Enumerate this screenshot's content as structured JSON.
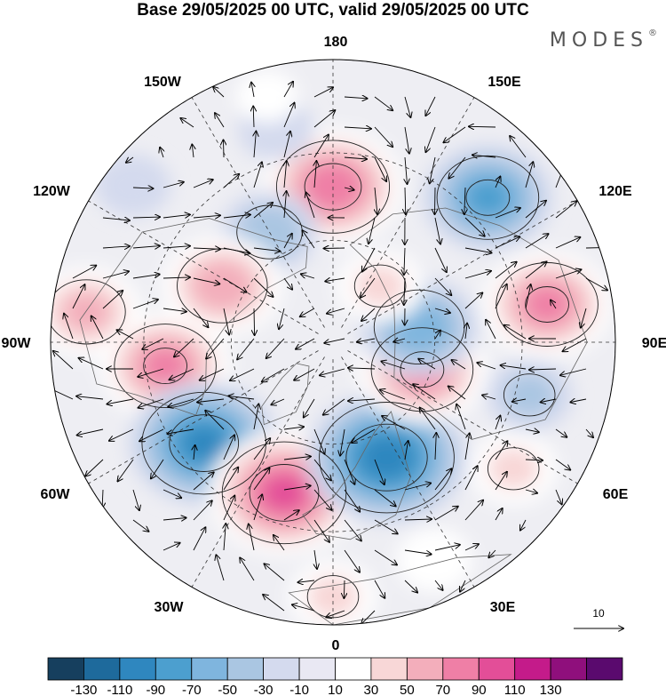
{
  "title": "Base 29/05/2025 00 UTC, valid 29/05/2025 00 UTC",
  "brand": "MODES",
  "brand_mark": "®",
  "longitude_labels": [
    {
      "text": "180"
    },
    {
      "text": "150E"
    },
    {
      "text": "120E"
    },
    {
      "text": "90E"
    },
    {
      "text": "60E"
    },
    {
      "text": "30E"
    },
    {
      "text": "0"
    },
    {
      "text": "30W"
    },
    {
      "text": "60W"
    },
    {
      "text": "90W"
    },
    {
      "text": "120W"
    },
    {
      "text": "150W"
    }
  ],
  "reference_vector": {
    "label": "10"
  },
  "colorbar": {
    "colors": [
      "#163f5e",
      "#1e6a9c",
      "#2f87bf",
      "#4c9fcf",
      "#7fb5de",
      "#aac6e2",
      "#d4daee",
      "#e9e8f3",
      "#ffffff",
      "#f8d7d7",
      "#f3aebb",
      "#ef7fa6",
      "#e34e98",
      "#c41b8a",
      "#8f0f7c",
      "#5a0a6e"
    ],
    "labels": [
      "-130",
      "-110",
      "-90",
      "-70",
      "-50",
      "-30",
      "-10",
      "10",
      "30",
      "50",
      "70",
      "90",
      "110",
      "130"
    ]
  },
  "anomalies": [
    {
      "name": "pos-pacific-north",
      "lon_deg": 180,
      "colat": 0.55,
      "amp": 90
    },
    {
      "name": "neg-east-siberia",
      "lon_deg": 133,
      "colat": 0.75,
      "amp": -80
    },
    {
      "name": "neg-alaska",
      "lon_deg": -150,
      "colat": 0.45,
      "amp": -50
    },
    {
      "name": "neg-bering",
      "lon_deg": -165,
      "colat": 0.78,
      "amp": -30
    },
    {
      "name": "pos-gulf-alaska",
      "lon_deg": -165,
      "colat": 0.9,
      "amp": 20
    },
    {
      "name": "pos-canada-west",
      "lon_deg": -117,
      "colat": 0.44,
      "amp": 70
    },
    {
      "name": "pos-pacific-nw",
      "lon_deg": -97,
      "colat": 0.88,
      "amp": 60
    },
    {
      "name": "pos-usa-central",
      "lon_deg": -82,
      "colat": 0.6,
      "amp": 80
    },
    {
      "name": "neg-labrador",
      "lon_deg": -52,
      "colat": 0.58,
      "amp": -100
    },
    {
      "name": "neg-north-pacific-west",
      "lon_deg": -128,
      "colat": 0.9,
      "amp": -30
    },
    {
      "name": "pos-north-atlantic",
      "lon_deg": -18,
      "colat": 0.56,
      "amp": 100
    },
    {
      "name": "neg-scandinavia",
      "lon_deg": 25,
      "colat": 0.45,
      "amp": -110
    },
    {
      "name": "pos-ural",
      "lon_deg": 73,
      "colat": 0.33,
      "amp": 80
    },
    {
      "name": "neg-kazakhstan",
      "lon_deg": 75,
      "colat": 0.72,
      "amp": -40
    },
    {
      "name": "neg-west-siberia",
      "lon_deg": 100,
      "colat": 0.31,
      "amp": -70
    },
    {
      "name": "pos-mongolia",
      "lon_deg": 100,
      "colat": 0.77,
      "amp": 80
    },
    {
      "name": "pos-siberia-north",
      "lon_deg": 140,
      "colat": 0.26,
      "amp": 40
    },
    {
      "name": "pos-caspian",
      "lon_deg": 55,
      "colat": 0.78,
      "amp": 40
    },
    {
      "name": "pos-mediterranean",
      "lon_deg": 25,
      "colat": 0.85,
      "amp": 30
    },
    {
      "name": "pos-south-atlantic",
      "lon_deg": 0,
      "colat": 0.9,
      "amp": 40
    }
  ]
}
